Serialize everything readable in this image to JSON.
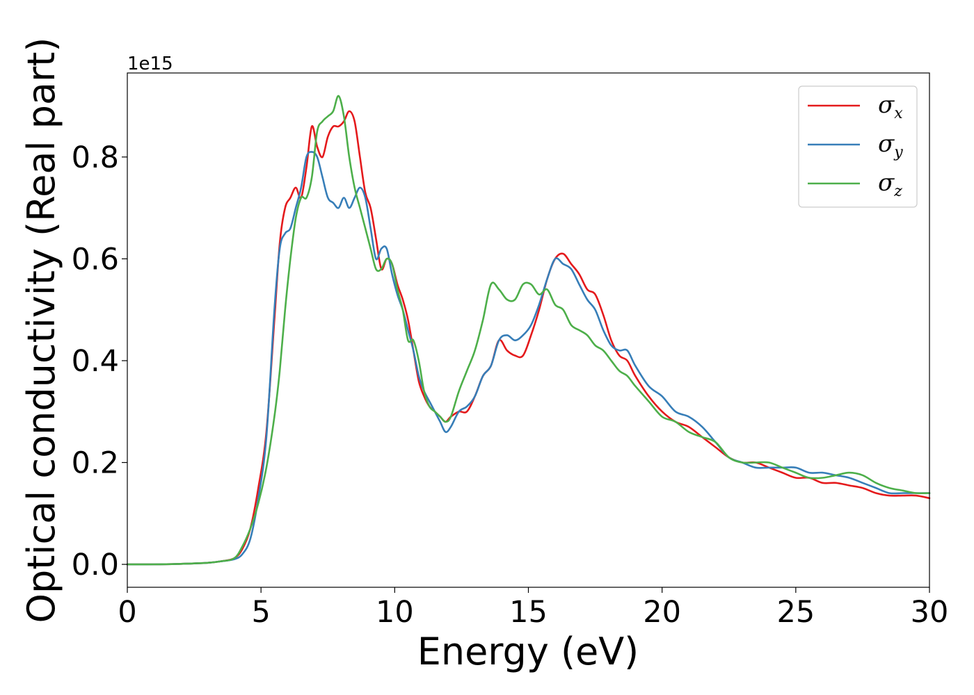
{
  "chart_data": {
    "type": "line",
    "title": "",
    "xlabel": "Energy (eV)",
    "ylabel": "Optical conductivity (Real part)",
    "y_offset_text": "1e15",
    "xlim": [
      0,
      30
    ],
    "ylim": [
      -0.045,
      0.965
    ],
    "xticks": [
      0,
      5,
      10,
      15,
      20,
      25,
      30
    ],
    "xtick_labels": [
      "0",
      "5",
      "10",
      "15",
      "20",
      "25",
      "30"
    ],
    "yticks": [
      0.0,
      0.2,
      0.4,
      0.6,
      0.8
    ],
    "ytick_labels": [
      "0.0",
      "0.2",
      "0.4",
      "0.6",
      "0.8"
    ],
    "grid": false,
    "legend_position": "top-right",
    "series": [
      {
        "name": "σx",
        "symbol": "σ",
        "subscript": "x",
        "color": "#e41a1c",
        "x": [
          0,
          1,
          2,
          3,
          3.5,
          4,
          4.3,
          4.6,
          4.9,
          5.2,
          5.5,
          5.7,
          5.9,
          6.1,
          6.3,
          6.5,
          6.7,
          6.9,
          7.1,
          7.3,
          7.5,
          7.7,
          7.9,
          8.1,
          8.3,
          8.5,
          8.7,
          8.9,
          9.1,
          9.3,
          9.5,
          9.7,
          9.9,
          10.1,
          10.3,
          10.5,
          10.7,
          10.9,
          11.1,
          11.3,
          11.5,
          11.7,
          11.9,
          12.1,
          12.4,
          12.7,
          13.0,
          13.3,
          13.6,
          13.9,
          14.2,
          14.5,
          14.8,
          15.1,
          15.4,
          15.7,
          16.0,
          16.3,
          16.6,
          16.9,
          17.2,
          17.5,
          17.8,
          18.1,
          18.4,
          18.7,
          19.0,
          19.5,
          20.0,
          20.5,
          21.0,
          21.5,
          22.0,
          22.5,
          23.0,
          23.5,
          24.0,
          24.5,
          25.0,
          25.5,
          26.0,
          26.5,
          27.0,
          27.5,
          28.0,
          28.5,
          29.0,
          29.5,
          30.0
        ],
        "y": [
          0.0,
          0.0,
          0.001,
          0.003,
          0.006,
          0.012,
          0.03,
          0.07,
          0.15,
          0.26,
          0.48,
          0.63,
          0.7,
          0.72,
          0.74,
          0.72,
          0.78,
          0.86,
          0.82,
          0.8,
          0.84,
          0.86,
          0.86,
          0.87,
          0.89,
          0.87,
          0.8,
          0.73,
          0.7,
          0.64,
          0.58,
          0.6,
          0.59,
          0.55,
          0.52,
          0.48,
          0.42,
          0.36,
          0.33,
          0.31,
          0.3,
          0.29,
          0.28,
          0.29,
          0.3,
          0.3,
          0.33,
          0.37,
          0.39,
          0.44,
          0.42,
          0.41,
          0.41,
          0.45,
          0.5,
          0.56,
          0.6,
          0.61,
          0.59,
          0.57,
          0.54,
          0.53,
          0.49,
          0.44,
          0.41,
          0.4,
          0.37,
          0.33,
          0.3,
          0.28,
          0.27,
          0.25,
          0.23,
          0.21,
          0.2,
          0.2,
          0.19,
          0.18,
          0.17,
          0.17,
          0.16,
          0.16,
          0.155,
          0.15,
          0.14,
          0.135,
          0.135,
          0.135,
          0.13
        ]
      },
      {
        "name": "σy",
        "symbol": "σ",
        "subscript": "y",
        "color": "#377eb8",
        "x": [
          0,
          1,
          2,
          3,
          3.5,
          4,
          4.3,
          4.6,
          4.9,
          5.2,
          5.5,
          5.7,
          5.9,
          6.1,
          6.3,
          6.5,
          6.7,
          6.9,
          7.1,
          7.3,
          7.5,
          7.7,
          7.9,
          8.1,
          8.3,
          8.5,
          8.7,
          8.9,
          9.1,
          9.3,
          9.5,
          9.7,
          9.9,
          10.1,
          10.3,
          10.5,
          10.7,
          10.9,
          11.1,
          11.3,
          11.5,
          11.7,
          11.9,
          12.1,
          12.4,
          12.7,
          13.0,
          13.3,
          13.6,
          13.9,
          14.2,
          14.5,
          14.8,
          15.1,
          15.4,
          15.7,
          16.0,
          16.3,
          16.6,
          16.9,
          17.2,
          17.5,
          17.8,
          18.1,
          18.4,
          18.7,
          19.0,
          19.5,
          20.0,
          20.5,
          21.0,
          21.5,
          22.0,
          22.5,
          23.0,
          23.5,
          24.0,
          24.5,
          25.0,
          25.5,
          26.0,
          26.5,
          27.0,
          27.5,
          28.0,
          28.5,
          29.0,
          29.5,
          30.0
        ],
        "y": [
          0.0,
          0.0,
          0.001,
          0.003,
          0.006,
          0.01,
          0.02,
          0.05,
          0.13,
          0.25,
          0.5,
          0.62,
          0.65,
          0.66,
          0.7,
          0.74,
          0.8,
          0.81,
          0.8,
          0.76,
          0.72,
          0.71,
          0.7,
          0.72,
          0.7,
          0.72,
          0.74,
          0.72,
          0.66,
          0.6,
          0.62,
          0.62,
          0.57,
          0.53,
          0.5,
          0.46,
          0.42,
          0.37,
          0.34,
          0.32,
          0.3,
          0.28,
          0.26,
          0.27,
          0.3,
          0.31,
          0.33,
          0.37,
          0.39,
          0.44,
          0.45,
          0.44,
          0.45,
          0.47,
          0.51,
          0.56,
          0.6,
          0.59,
          0.58,
          0.55,
          0.52,
          0.5,
          0.46,
          0.43,
          0.42,
          0.42,
          0.39,
          0.35,
          0.33,
          0.3,
          0.29,
          0.27,
          0.24,
          0.21,
          0.2,
          0.19,
          0.19,
          0.19,
          0.19,
          0.18,
          0.18,
          0.175,
          0.17,
          0.16,
          0.15,
          0.14,
          0.14,
          0.14,
          0.14
        ]
      },
      {
        "name": "σz",
        "symbol": "σ",
        "subscript": "z",
        "color": "#4daf4a",
        "x": [
          0,
          1,
          2,
          3,
          3.5,
          4,
          4.3,
          4.6,
          4.9,
          5.2,
          5.5,
          5.7,
          5.9,
          6.1,
          6.3,
          6.5,
          6.7,
          6.9,
          7.1,
          7.3,
          7.5,
          7.7,
          7.9,
          8.1,
          8.3,
          8.5,
          8.7,
          8.9,
          9.1,
          9.3,
          9.5,
          9.7,
          9.9,
          10.1,
          10.3,
          10.5,
          10.7,
          10.9,
          11.1,
          11.3,
          11.5,
          11.7,
          11.9,
          12.1,
          12.4,
          12.7,
          13.0,
          13.3,
          13.6,
          13.9,
          14.2,
          14.5,
          14.8,
          15.1,
          15.4,
          15.7,
          16.0,
          16.3,
          16.6,
          16.9,
          17.2,
          17.5,
          17.8,
          18.1,
          18.4,
          18.7,
          19.0,
          19.5,
          20.0,
          20.5,
          21.0,
          21.5,
          22.0,
          22.5,
          23.0,
          23.5,
          24.0,
          24.5,
          25.0,
          25.5,
          26.0,
          26.5,
          27.0,
          27.5,
          28.0,
          28.5,
          29.0,
          29.5,
          30.0
        ],
        "y": [
          0.0,
          0.0,
          0.001,
          0.003,
          0.006,
          0.012,
          0.035,
          0.07,
          0.12,
          0.19,
          0.29,
          0.38,
          0.5,
          0.6,
          0.68,
          0.72,
          0.72,
          0.76,
          0.85,
          0.87,
          0.88,
          0.89,
          0.92,
          0.88,
          0.8,
          0.74,
          0.7,
          0.66,
          0.62,
          0.58,
          0.58,
          0.6,
          0.59,
          0.54,
          0.5,
          0.44,
          0.44,
          0.4,
          0.34,
          0.31,
          0.3,
          0.29,
          0.28,
          0.29,
          0.34,
          0.38,
          0.42,
          0.48,
          0.55,
          0.54,
          0.52,
          0.52,
          0.55,
          0.55,
          0.53,
          0.54,
          0.51,
          0.5,
          0.47,
          0.46,
          0.45,
          0.43,
          0.42,
          0.4,
          0.38,
          0.37,
          0.35,
          0.32,
          0.29,
          0.28,
          0.26,
          0.25,
          0.24,
          0.21,
          0.2,
          0.2,
          0.2,
          0.19,
          0.18,
          0.17,
          0.17,
          0.175,
          0.18,
          0.175,
          0.16,
          0.15,
          0.145,
          0.14,
          0.14
        ]
      }
    ]
  }
}
